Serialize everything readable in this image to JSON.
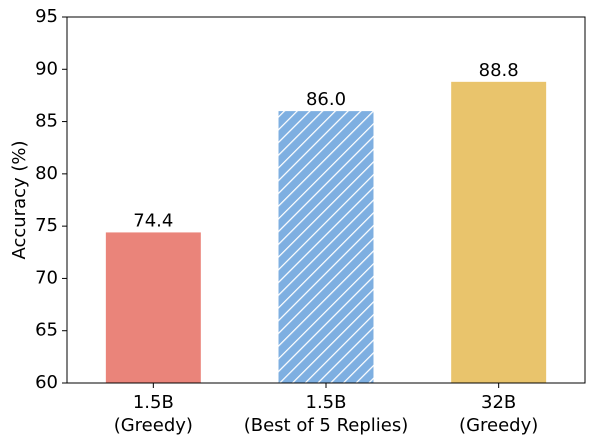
{
  "chart_data": {
    "type": "bar",
    "y_label": "Accuracy (%)",
    "categories": [
      [
        "1.5B",
        "(Greedy)"
      ],
      [
        "1.5B",
        "(Best of 5 Replies)"
      ],
      [
        "32B",
        "(Greedy)"
      ]
    ],
    "values": [
      74.4,
      86.0,
      88.8
    ],
    "value_labels": [
      "74.4",
      "86.0",
      "88.8"
    ],
    "colors": [
      "#ea847a",
      "#7eafe1",
      "#e9c46c"
    ],
    "hatch": [
      false,
      true,
      false
    ],
    "ylim": [
      60,
      95
    ],
    "yticks": [
      60,
      65,
      70,
      75,
      80,
      85,
      90,
      95
    ],
    "grid": false
  }
}
